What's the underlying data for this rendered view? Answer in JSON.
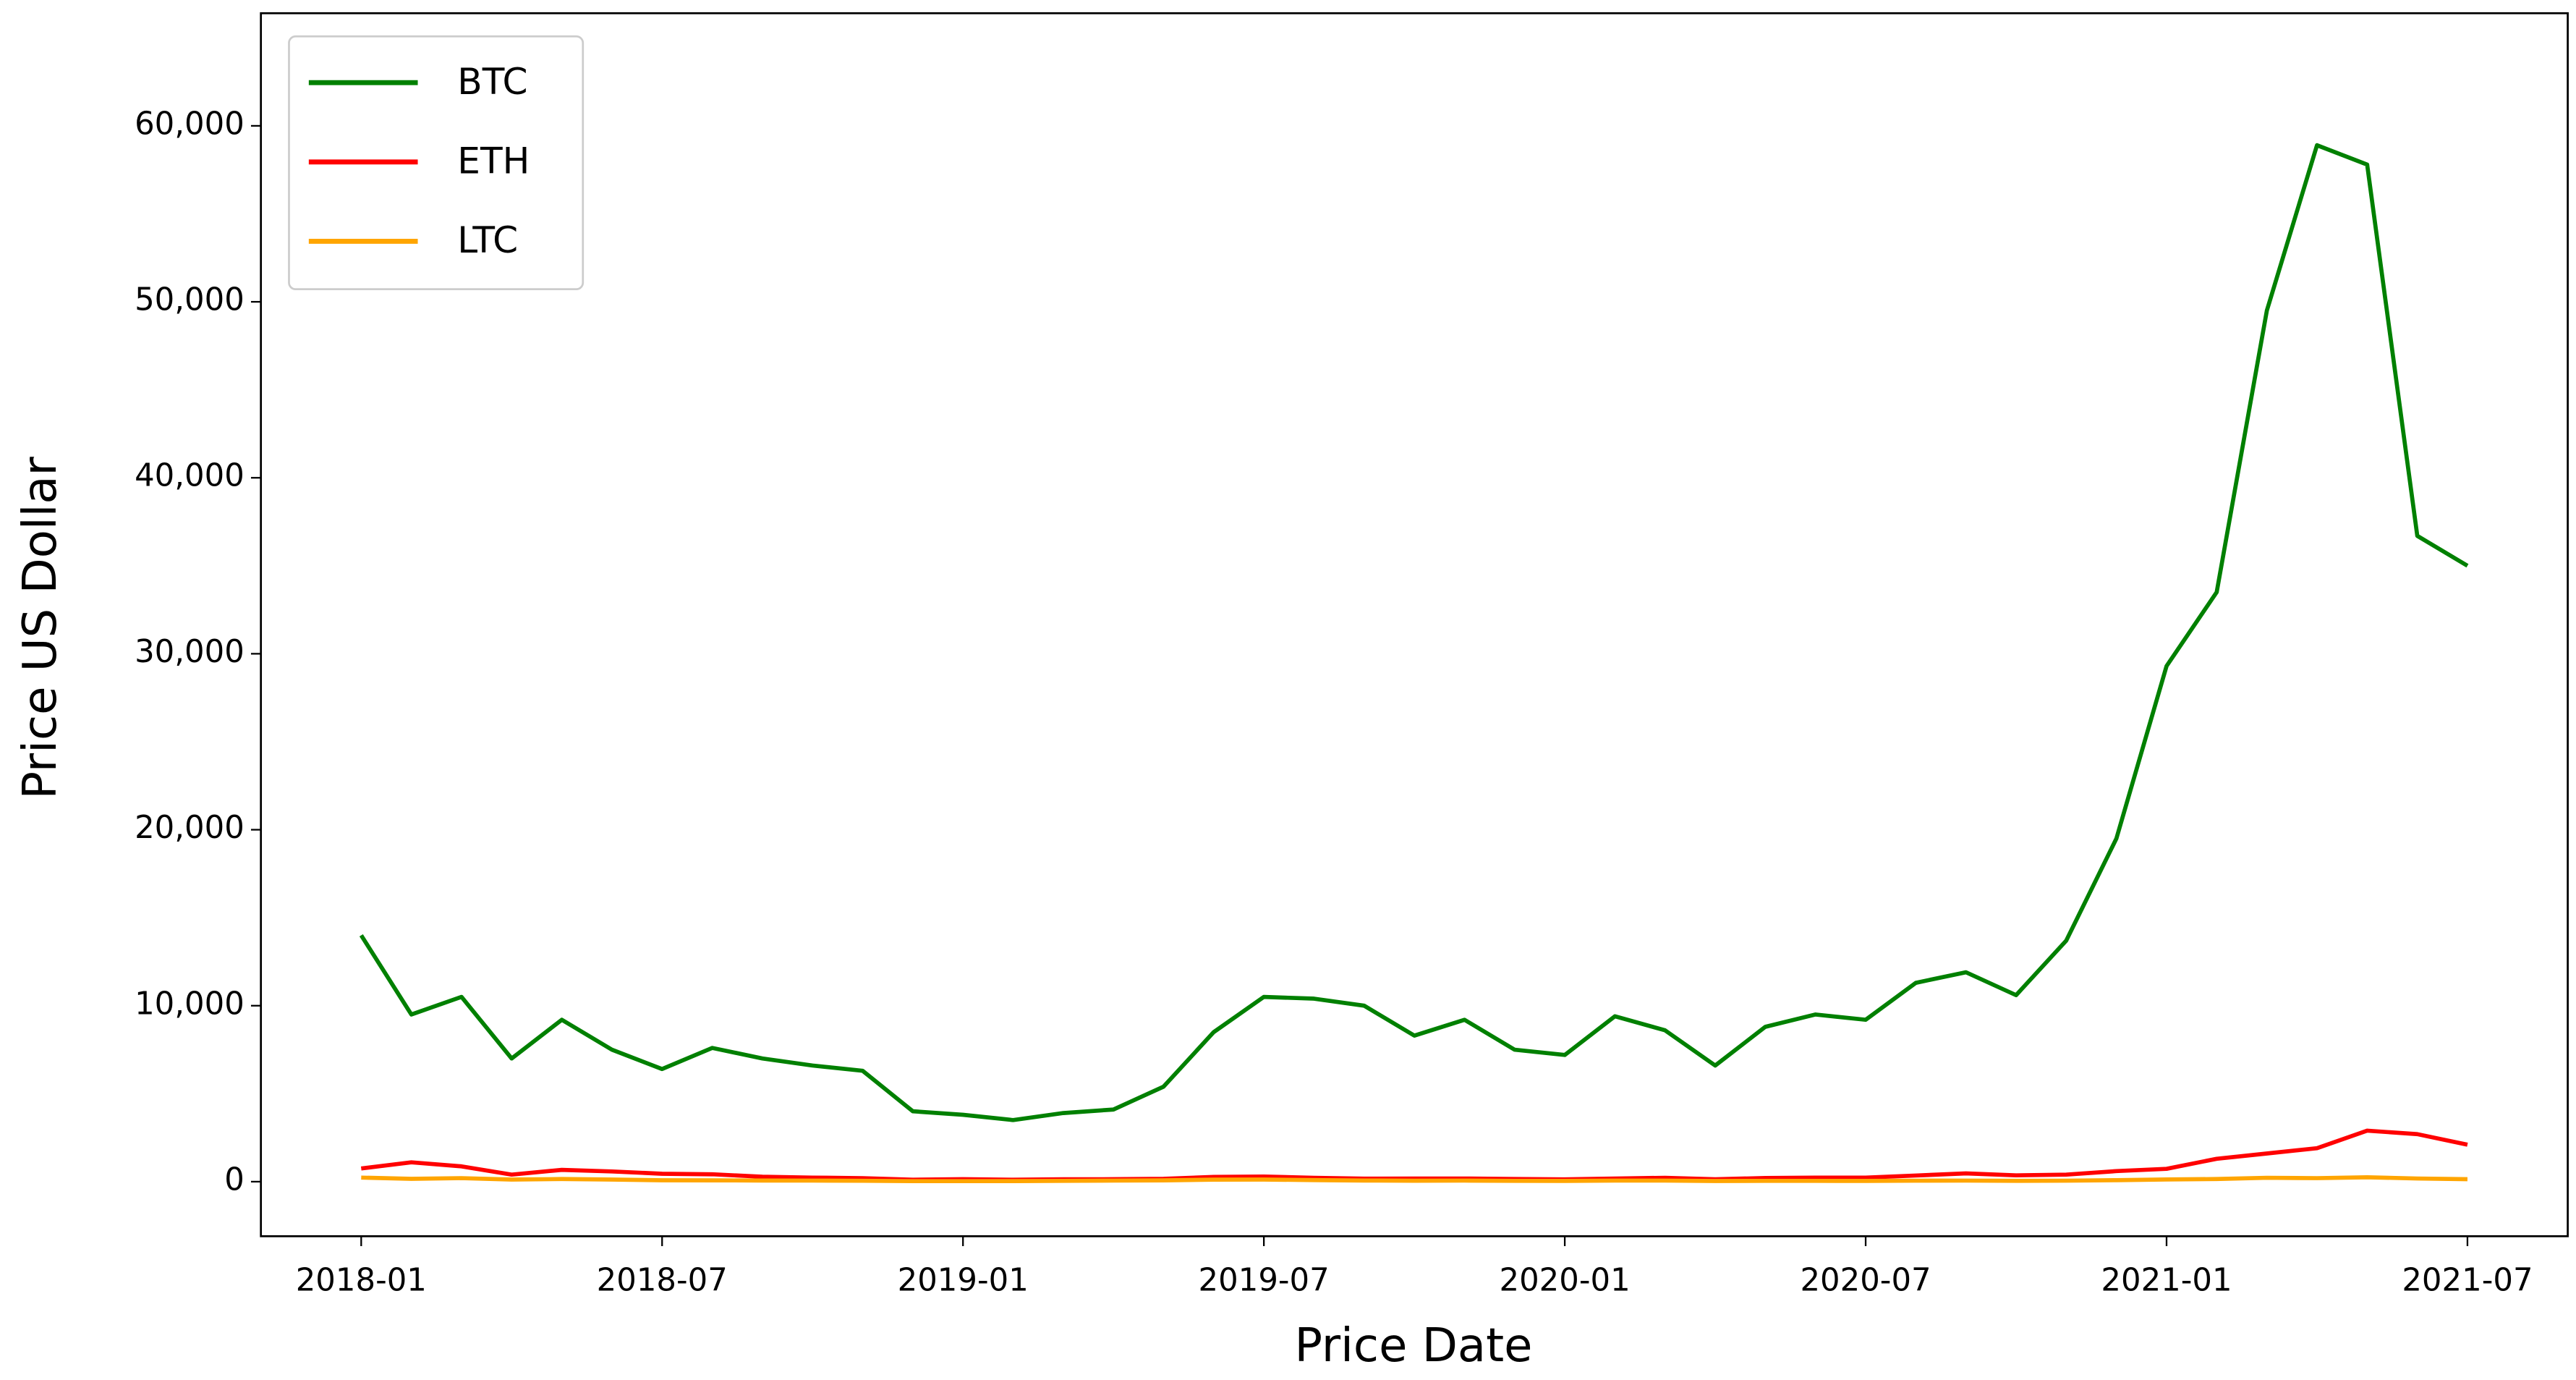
{
  "chart_data": {
    "type": "line",
    "x_label": "Price Date",
    "y_label": "Price US Dollar",
    "x": [
      "2018-01",
      "2018-02",
      "2018-03",
      "2018-04",
      "2018-05",
      "2018-06",
      "2018-07",
      "2018-08",
      "2018-09",
      "2018-10",
      "2018-11",
      "2018-12",
      "2019-01",
      "2019-02",
      "2019-03",
      "2019-04",
      "2019-05",
      "2019-06",
      "2019-07",
      "2019-08",
      "2019-09",
      "2019-10",
      "2019-11",
      "2019-12",
      "2020-01",
      "2020-02",
      "2020-03",
      "2020-04",
      "2020-05",
      "2020-06",
      "2020-07",
      "2020-08",
      "2020-09",
      "2020-10",
      "2020-11",
      "2020-12",
      "2021-01",
      "2021-02",
      "2021-03",
      "2021-04",
      "2021-05",
      "2021-06",
      "2021-07"
    ],
    "series": [
      {
        "name": "BTC",
        "color": "#008000",
        "values": [
          14000,
          9500,
          10500,
          7000,
          9200,
          7500,
          6400,
          7600,
          7000,
          6600,
          6300,
          4000,
          3800,
          3500,
          3900,
          4100,
          5400,
          8500,
          10500,
          10400,
          10000,
          8300,
          9200,
          7500,
          7200,
          9400,
          8600,
          6600,
          8800,
          9500,
          9200,
          11300,
          11900,
          10600,
          13700,
          19500,
          29300,
          33500,
          49500,
          58900,
          57800,
          36700,
          35000
        ]
      },
      {
        "name": "ETH",
        "color": "#ff0000",
        "values": [
          750,
          1100,
          870,
          400,
          670,
          580,
          450,
          420,
          280,
          230,
          200,
          110,
          140,
          110,
          135,
          140,
          160,
          270,
          290,
          220,
          170,
          180,
          180,
          150,
          130,
          180,
          220,
          135,
          210,
          230,
          230,
          350,
          470,
          360,
          400,
          600,
          730,
          1300,
          1600,
          1900,
          2900,
          2700,
          2100
        ]
      },
      {
        "name": "LTC",
        "color": "#ffa500",
        "values": [
          230,
          160,
          200,
          120,
          150,
          120,
          80,
          75,
          65,
          60,
          50,
          30,
          30,
          32,
          45,
          60,
          75,
          115,
          120,
          90,
          65,
          55,
          60,
          45,
          42,
          60,
          60,
          40,
          45,
          45,
          42,
          57,
          60,
          48,
          57,
          85,
          125,
          150,
          220,
          200,
          250,
          180,
          140
        ]
      }
    ],
    "xlim": [
      "2017-11",
      "2021-09"
    ],
    "xticks": [
      "2018-01",
      "2018-07",
      "2019-01",
      "2019-07",
      "2020-01",
      "2020-07",
      "2021-01",
      "2021-07"
    ],
    "ylim": [
      -3100,
      66400
    ],
    "yticks": [
      0,
      {
        "value": 10000,
        "label": "10,000"
      },
      {
        "value": 20000,
        "label": "20,000"
      },
      {
        "value": 30000,
        "label": "30,000"
      },
      {
        "value": 40000,
        "label": "40,000"
      },
      {
        "value": 50000,
        "label": "50,000"
      },
      {
        "value": 60000,
        "label": "60,000"
      }
    ],
    "legend": "upper left",
    "grid": false
  }
}
